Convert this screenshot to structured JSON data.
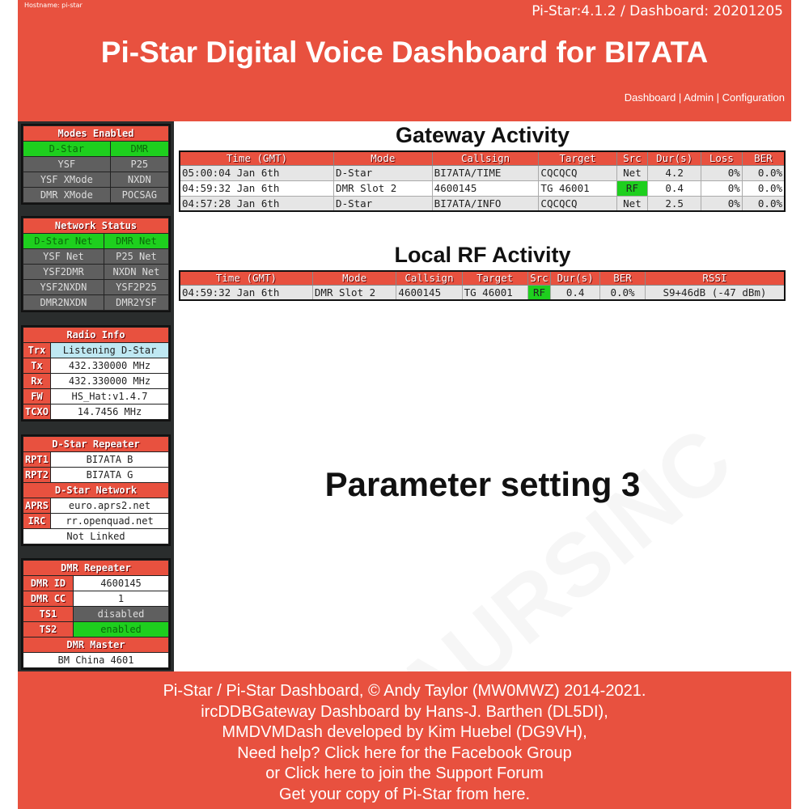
{
  "header": {
    "hostname": "Hostname: pi-star",
    "version": "Pi-Star:4.1.2 / Dashboard: 20201205",
    "title": "Pi-Star Digital Voice Dashboard for BI7ATA",
    "nav": [
      "Dashboard",
      "Admin",
      "Configuration"
    ]
  },
  "modes": {
    "title": "Modes Enabled",
    "items": [
      {
        "label": "D-Star",
        "on": true
      },
      {
        "label": "DMR",
        "on": true
      },
      {
        "label": "YSF",
        "on": false
      },
      {
        "label": "P25",
        "on": false
      },
      {
        "label": "YSF XMode",
        "on": false
      },
      {
        "label": "NXDN",
        "on": false
      },
      {
        "label": "DMR XMode",
        "on": false
      },
      {
        "label": "POCSAG",
        "on": false
      }
    ]
  },
  "network": {
    "title": "Network Status",
    "items": [
      {
        "label": "D-Star Net",
        "on": true
      },
      {
        "label": "DMR Net",
        "on": true
      },
      {
        "label": "YSF Net",
        "on": false
      },
      {
        "label": "P25 Net",
        "on": false
      },
      {
        "label": "YSF2DMR",
        "on": false
      },
      {
        "label": "NXDN Net",
        "on": false
      },
      {
        "label": "YSF2NXDN",
        "on": false
      },
      {
        "label": "YSF2P25",
        "on": false
      },
      {
        "label": "DMR2NXDN",
        "on": false
      },
      {
        "label": "DMR2YSF",
        "on": false
      }
    ]
  },
  "radio": {
    "title": "Radio Info",
    "rows": [
      {
        "label": "Trx",
        "value": "Listening D-Star"
      },
      {
        "label": "Tx",
        "value": "432.330000 MHz"
      },
      {
        "label": "Rx",
        "value": "432.330000 MHz"
      },
      {
        "label": "FW",
        "value": "HS_Hat:v1.4.7"
      },
      {
        "label": "TCXO",
        "value": "14.7456 MHz"
      }
    ]
  },
  "dstar": {
    "title": "D-Star Repeater",
    "rows": [
      {
        "label": "RPT1",
        "value": "BI7ATA B"
      },
      {
        "label": "RPT2",
        "value": "BI7ATA G"
      }
    ],
    "network_title": "D-Star Network",
    "net_rows": [
      {
        "label": "APRS",
        "value": "euro.aprs2.net"
      },
      {
        "label": "IRC",
        "value": "rr.openquad.net"
      }
    ],
    "link_status": "Not Linked"
  },
  "dmr": {
    "title": "DMR Repeater",
    "rows": [
      {
        "label": "DMR ID",
        "value": "4600145"
      },
      {
        "label": "DMR CC",
        "value": "1"
      },
      {
        "label": "TS1",
        "value": "disabled",
        "state": "off"
      },
      {
        "label": "TS2",
        "value": "enabled",
        "state": "on"
      }
    ],
    "master_title": "DMR Master",
    "master": "BM China 4601"
  },
  "gateway": {
    "title": "Gateway Activity",
    "columns": [
      "Time (GMT)",
      "Mode",
      "Callsign",
      "Target",
      "Src",
      "Dur(s)",
      "Loss",
      "BER"
    ],
    "rows": [
      [
        "05:00:04 Jan 6th",
        "D-Star",
        "BI7ATA/TIME",
        "CQCQCQ",
        "Net",
        "4.2",
        "0%",
        "0.0%"
      ],
      [
        "04:59:32 Jan 6th",
        "DMR Slot 2",
        "4600145",
        "TG 46001",
        "RF",
        "0.4",
        "0%",
        "0.0%"
      ],
      [
        "04:57:28 Jan 6th",
        "D-Star",
        "BI7ATA/INFO",
        "CQCQCQ",
        "Net",
        "2.5",
        "0%",
        "0.0%"
      ]
    ]
  },
  "local": {
    "title": "Local RF Activity",
    "columns": [
      "Time (GMT)",
      "Mode",
      "Callsign",
      "Target",
      "Src",
      "Dur(s)",
      "BER",
      "RSSI"
    ],
    "rows": [
      [
        "04:59:32 Jan 6th",
        "DMR Slot 2",
        "4600145",
        "TG 46001",
        "RF",
        "0.4",
        "0.0%",
        "S9+46dB (-47 dBm)"
      ]
    ]
  },
  "caption": "Parameter setting 3",
  "watermark": "AURSINC",
  "footer": [
    "Pi-Star / Pi-Star Dashboard, © Andy Taylor (MW0MWZ) 2014-2021.",
    "ircDDBGateway Dashboard by Hans-J. Barthen (DL5DI),",
    "MMDVMDash developed by Kim Huebel (DG9VH),",
    "Need help? Click here for the Facebook Group",
    "or Click here to join the Support Forum",
    "Get your copy of Pi-Star from here."
  ],
  "colors": {
    "accent": "#e8513f",
    "active": "#1ecf1e",
    "inactive": "#5f5f5f",
    "sidebar": "#2a2d2d"
  }
}
